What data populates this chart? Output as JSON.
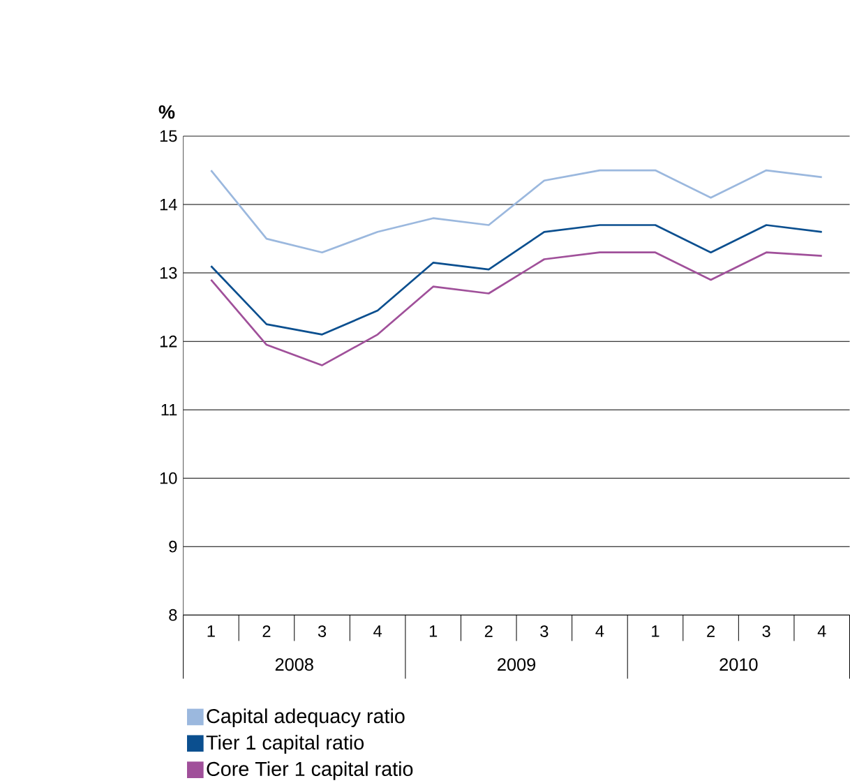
{
  "chart_data": {
    "type": "line",
    "ylabel": "%",
    "categories": [
      "1",
      "2",
      "3",
      "4",
      "1",
      "2",
      "3",
      "4",
      "1",
      "2",
      "3",
      "4"
    ],
    "annotations": [
      "2008",
      "2009",
      "2010"
    ],
    "ylim": [
      8,
      15
    ],
    "yticks": [
      8,
      9,
      10,
      11,
      12,
      13,
      14,
      15
    ],
    "grid": "y",
    "legend": "bottom",
    "marker": "none",
    "line_style": "solid",
    "series": [
      {
        "name": "Capital adequacy ratio",
        "color": "#9bb8de",
        "values": [
          14.5,
          13.5,
          13.3,
          13.6,
          13.8,
          13.7,
          14.35,
          14.5,
          14.5,
          14.1,
          14.5,
          14.4
        ]
      },
      {
        "name": "Tier 1 capital ratio",
        "color": "#0b4f8f",
        "values": [
          13.1,
          12.25,
          12.1,
          12.45,
          13.15,
          13.05,
          13.6,
          13.7,
          13.7,
          13.3,
          13.7,
          13.6
        ]
      },
      {
        "name": "Core Tier 1 capital ratio",
        "color": "#a0509a",
        "values": [
          12.9,
          11.95,
          11.65,
          12.1,
          12.8,
          12.7,
          13.2,
          13.3,
          13.3,
          12.9,
          13.3,
          13.25
        ]
      }
    ]
  }
}
